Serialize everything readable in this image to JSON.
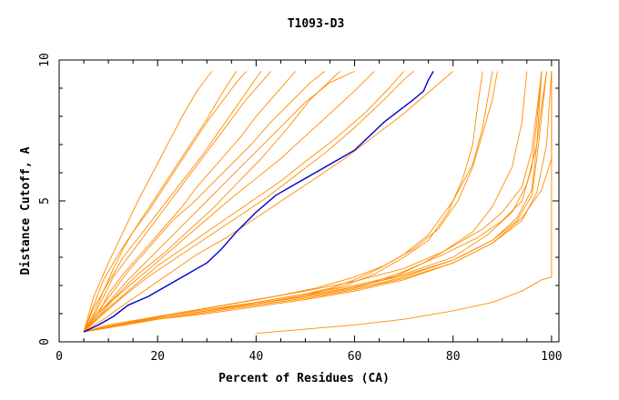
{
  "chart_data": {
    "type": "line",
    "title": "T1093-D3",
    "xlabel": "Percent of Residues (CA)",
    "ylabel": "Distance Cutoff, A",
    "xlim": [
      0,
      101.5
    ],
    "ylim": [
      0,
      10
    ],
    "x_ticks": [
      "0",
      "20",
      "40",
      "60",
      "80",
      "100"
    ],
    "y_ticks": [
      "0",
      "5",
      "10"
    ],
    "grid": false,
    "colors": {
      "orange": "#ff8c00",
      "highlight": "#0000cc",
      "axis": "#000000"
    },
    "series": [
      {
        "color": "#0000cc",
        "highlighted": true,
        "x": [
          5,
          8,
          11,
          14,
          18,
          22,
          26,
          30,
          33,
          36,
          40,
          44,
          48,
          52,
          56,
          60,
          63,
          66,
          69,
          72,
          74,
          75,
          76
        ],
        "y": [
          0.35,
          0.6,
          0.9,
          1.3,
          1.6,
          2.0,
          2.4,
          2.8,
          3.3,
          3.9,
          4.6,
          5.2,
          5.6,
          6.0,
          6.4,
          6.8,
          7.3,
          7.8,
          8.2,
          8.6,
          8.9,
          9.3,
          9.6
        ]
      },
      {
        "color": "#ff8c00",
        "x": [
          5,
          7,
          9,
          11,
          13,
          15,
          18,
          21,
          24,
          27,
          30,
          33,
          36,
          38
        ],
        "y": [
          0.35,
          1.0,
          1.8,
          2.6,
          3.3,
          3.9,
          4.6,
          5.4,
          6.2,
          7.0,
          7.8,
          8.5,
          9.2,
          9.6
        ]
      },
      {
        "color": "#ff8c00",
        "x": [
          5,
          7,
          9,
          11,
          14,
          17,
          20,
          23,
          26,
          29,
          32,
          35,
          38,
          41,
          43
        ],
        "y": [
          0.35,
          0.9,
          1.6,
          2.3,
          3.0,
          3.7,
          4.4,
          5.1,
          5.8,
          6.5,
          7.2,
          7.9,
          8.6,
          9.2,
          9.6
        ]
      },
      {
        "color": "#ff8c00",
        "x": [
          5,
          8,
          10,
          13,
          16,
          19,
          22,
          25,
          28,
          31,
          34,
          37,
          40,
          43,
          46,
          48
        ],
        "y": [
          0.35,
          1.0,
          1.7,
          2.4,
          3.0,
          3.6,
          4.2,
          4.8,
          5.5,
          6.1,
          6.7,
          7.3,
          8.0,
          8.6,
          9.2,
          9.6
        ]
      },
      {
        "color": "#ff8c00",
        "x": [
          5,
          8,
          11,
          14,
          17,
          20,
          23,
          27,
          31,
          35,
          39,
          43,
          47,
          51,
          54
        ],
        "y": [
          0.35,
          1.1,
          1.8,
          2.5,
          3.1,
          3.7,
          4.3,
          4.9,
          5.6,
          6.3,
          7.0,
          7.8,
          8.5,
          9.2,
          9.6
        ]
      },
      {
        "color": "#ff8c00",
        "x": [
          5,
          7,
          9,
          12,
          15,
          18,
          21,
          24,
          27,
          30,
          33,
          36
        ],
        "y": [
          0.35,
          1.3,
          2.2,
          3.1,
          3.9,
          4.7,
          5.5,
          6.3,
          7.1,
          7.9,
          8.8,
          9.6
        ]
      },
      {
        "color": "#ff8c00",
        "x": [
          5,
          8,
          11,
          14,
          18,
          22,
          26,
          30,
          34,
          38,
          42,
          46,
          50,
          55,
          60
        ],
        "y": [
          0.35,
          1.0,
          1.6,
          2.2,
          2.9,
          3.6,
          4.3,
          5.0,
          5.7,
          6.4,
          7.1,
          7.8,
          8.5,
          9.2,
          9.6
        ]
      },
      {
        "color": "#ff8c00",
        "x": [
          5,
          8,
          11,
          15,
          19,
          23,
          27,
          31,
          35,
          40,
          45,
          50,
          55,
          60,
          64
        ],
        "y": [
          0.35,
          0.9,
          1.5,
          2.1,
          2.7,
          3.3,
          3.9,
          4.5,
          5.1,
          5.8,
          6.5,
          7.3,
          8.1,
          8.9,
          9.6
        ]
      },
      {
        "color": "#ff8c00",
        "x": [
          5,
          8,
          12,
          16,
          20,
          25,
          30,
          35,
          40,
          45,
          50,
          56,
          62,
          67,
          70
        ],
        "y": [
          0.35,
          0.9,
          1.5,
          2.1,
          2.7,
          3.3,
          3.9,
          4.5,
          5.1,
          5.7,
          6.4,
          7.2,
          8.1,
          9.0,
          9.6
        ]
      },
      {
        "color": "#ff8c00",
        "x": [
          5,
          9,
          13,
          18,
          23,
          28,
          34,
          40,
          46,
          52,
          58,
          64,
          70,
          76,
          80
        ],
        "y": [
          0.35,
          0.8,
          1.3,
          1.9,
          2.5,
          3.1,
          3.7,
          4.4,
          5.1,
          5.8,
          6.5,
          7.3,
          8.1,
          9.0,
          9.6
        ]
      },
      {
        "color": "#ff8c00",
        "x": [
          5,
          7,
          10,
          13,
          16,
          19,
          22,
          25,
          28,
          31
        ],
        "y": [
          0.35,
          1.6,
          2.8,
          3.9,
          5.0,
          6.0,
          7.0,
          8.0,
          8.9,
          9.6
        ]
      },
      {
        "color": "#ff8c00",
        "x": [
          5,
          7,
          10,
          13,
          17,
          21,
          25,
          29,
          33,
          37,
          41
        ],
        "y": [
          0.35,
          1.2,
          2.1,
          3.0,
          3.9,
          4.8,
          5.7,
          6.6,
          7.6,
          8.6,
          9.6
        ]
      },
      {
        "color": "#ff8c00",
        "x": [
          5,
          9,
          13,
          18,
          24,
          30,
          36,
          42,
          48,
          54,
          60,
          66,
          70,
          72
        ],
        "y": [
          0.35,
          1.0,
          1.6,
          2.3,
          3.0,
          3.7,
          4.4,
          5.1,
          5.9,
          6.7,
          7.6,
          8.6,
          9.3,
          9.6
        ]
      },
      {
        "color": "#ff8c00",
        "x": [
          5,
          8,
          12,
          16,
          21,
          26,
          31,
          36,
          41,
          46,
          51,
          57
        ],
        "y": [
          0.35,
          1.0,
          1.7,
          2.4,
          3.1,
          3.9,
          4.7,
          5.6,
          6.5,
          7.5,
          8.6,
          9.6
        ]
      },
      {
        "color": "#ff8c00",
        "x": [
          5,
          10,
          20,
          30,
          40,
          50,
          55,
          60,
          65,
          70,
          75,
          80,
          84,
          86,
          87,
          88
        ],
        "y": [
          0.35,
          0.6,
          0.9,
          1.15,
          1.4,
          1.7,
          1.9,
          2.2,
          2.6,
          3.1,
          3.8,
          5.0,
          6.3,
          7.6,
          8.6,
          9.6
        ]
      },
      {
        "color": "#ff8c00",
        "x": [
          5,
          10,
          20,
          30,
          40,
          50,
          58,
          64,
          70,
          75,
          79,
          82,
          84,
          85,
          86
        ],
        "y": [
          0.35,
          0.55,
          0.85,
          1.1,
          1.35,
          1.65,
          2.0,
          2.4,
          3.0,
          3.6,
          4.6,
          5.8,
          7.0,
          8.4,
          9.6
        ]
      },
      {
        "color": "#ff8c00",
        "x": [
          5,
          12,
          22,
          32,
          42,
          52,
          60,
          66,
          72,
          77,
          81,
          84,
          86,
          88,
          89
        ],
        "y": [
          0.35,
          0.6,
          0.95,
          1.25,
          1.55,
          1.9,
          2.3,
          2.7,
          3.3,
          4.0,
          5.0,
          6.2,
          7.4,
          8.6,
          9.6
        ]
      },
      {
        "color": "#ff8c00",
        "x": [
          5,
          10,
          20,
          30,
          40,
          50,
          60,
          68,
          74,
          80,
          86,
          90,
          94,
          96,
          97,
          98
        ],
        "y": [
          0.35,
          0.55,
          0.85,
          1.1,
          1.35,
          1.6,
          1.9,
          2.3,
          2.8,
          3.4,
          4.0,
          4.6,
          5.5,
          6.8,
          8.2,
          9.6
        ]
      },
      {
        "color": "#ff8c00",
        "x": [
          5,
          12,
          22,
          32,
          42,
          52,
          62,
          70,
          78,
          85,
          90,
          94,
          96,
          97,
          98
        ],
        "y": [
          0.35,
          0.6,
          0.9,
          1.15,
          1.4,
          1.7,
          2.0,
          2.5,
          3.1,
          3.7,
          4.3,
          5.0,
          6.2,
          7.8,
          9.6
        ]
      },
      {
        "color": "#ff8c00",
        "x": [
          5,
          10,
          20,
          30,
          40,
          50,
          60,
          70,
          80,
          88,
          93,
          96,
          97,
          98,
          99
        ],
        "y": [
          0.35,
          0.5,
          0.8,
          1.05,
          1.3,
          1.55,
          1.85,
          2.3,
          2.9,
          3.6,
          4.3,
          5.2,
          6.5,
          8.0,
          9.6
        ]
      },
      {
        "color": "#ff8c00",
        "x": [
          5,
          10,
          20,
          30,
          40,
          50,
          60,
          70,
          80,
          88,
          94,
          98,
          100,
          100
        ],
        "y": [
          0.35,
          0.55,
          0.8,
          1.0,
          1.25,
          1.5,
          1.8,
          2.2,
          2.8,
          3.5,
          4.4,
          5.4,
          6.5,
          9.6
        ]
      },
      {
        "color": "#ff8c00",
        "x": [
          5,
          10,
          20,
          30,
          40,
          50,
          60,
          70,
          80,
          87,
          92,
          95,
          97,
          98,
          99
        ],
        "y": [
          0.35,
          0.55,
          0.85,
          1.1,
          1.4,
          1.7,
          2.0,
          2.4,
          3.0,
          3.8,
          4.6,
          5.6,
          7.0,
          8.4,
          9.6
        ]
      },
      {
        "color": "#ff8c00",
        "x": [
          5,
          10,
          20,
          30,
          40,
          50,
          60,
          70,
          80,
          88,
          93,
          96,
          97,
          98
        ],
        "y": [
          0.35,
          0.55,
          0.85,
          1.1,
          1.35,
          1.65,
          1.95,
          2.35,
          2.9,
          3.6,
          4.4,
          5.4,
          7.0,
          9.6
        ]
      },
      {
        "color": "#ff8c00",
        "x": [
          5,
          10,
          20,
          30,
          40,
          50,
          60,
          70,
          80,
          88,
          94,
          97,
          99,
          100
        ],
        "y": [
          0.35,
          0.5,
          0.8,
          1.05,
          1.3,
          1.55,
          1.85,
          2.25,
          2.8,
          3.5,
          4.3,
          5.3,
          7.0,
          9.6
        ]
      },
      {
        "color": "#ff8c00",
        "x": [
          40,
          50,
          60,
          70,
          80,
          88,
          94,
          98,
          100,
          100
        ],
        "y": [
          0.3,
          0.45,
          0.6,
          0.8,
          1.1,
          1.4,
          1.8,
          2.2,
          2.3,
          9.6
        ]
      },
      {
        "color": "#ff8c00",
        "x": [
          5,
          10,
          20,
          30,
          40,
          50,
          60,
          70,
          78,
          84,
          88,
          92,
          94,
          95
        ],
        "y": [
          0.35,
          0.55,
          0.9,
          1.2,
          1.5,
          1.8,
          2.15,
          2.6,
          3.2,
          3.9,
          4.8,
          6.2,
          7.8,
          9.6
        ]
      }
    ]
  }
}
